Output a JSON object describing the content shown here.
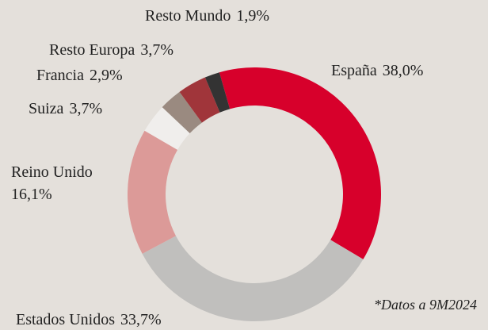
{
  "chart_data": {
    "type": "donut",
    "categories": [
      "España",
      "Estados Unidos",
      "Reino Unido",
      "Suiza",
      "Francia",
      "Resto Europa",
      "Resto Mundo"
    ],
    "values": [
      38.0,
      33.7,
      16.1,
      3.7,
      2.9,
      3.7,
      1.9
    ],
    "value_labels": [
      "38,0%",
      "33,7%",
      "16,1%",
      "3,7%",
      "2,9%",
      "3,7%",
      "1,9%"
    ],
    "colors": [
      "#d7002b",
      "#c0bfbd",
      "#dc9a98",
      "#f0eeec",
      "#9a8a80",
      "#a0353a",
      "#333333"
    ],
    "annotation": "*Datos a 9M2024"
  }
}
